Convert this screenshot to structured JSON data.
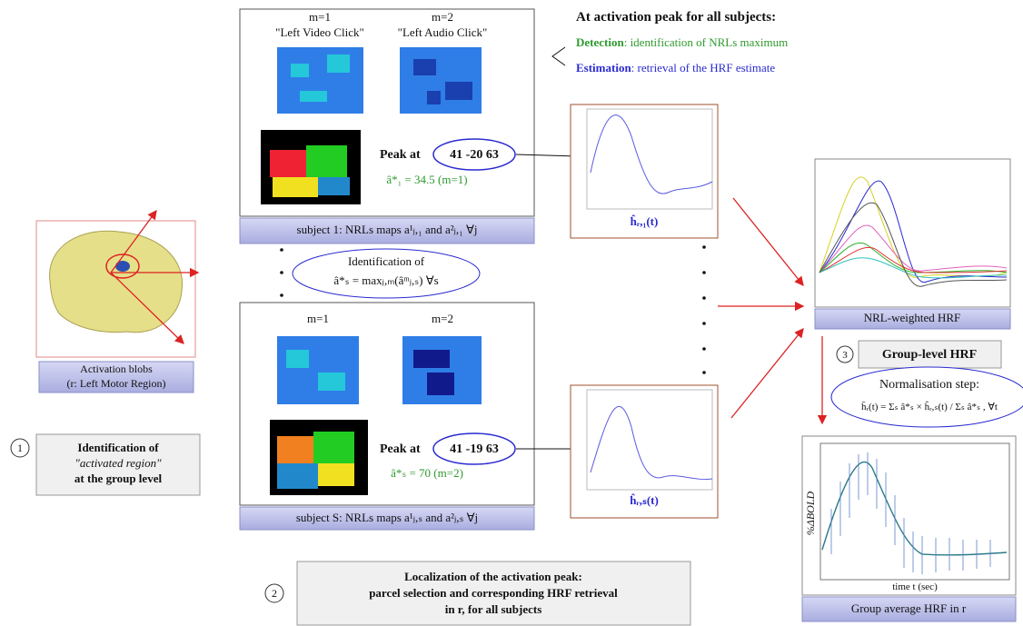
{
  "top": {
    "title": "At activation peak for all subjects:",
    "detection_term": "Detection",
    "detection_text": ": identification of NRLs maximum",
    "estimation_term": "Estimation",
    "estimation_text": ": retrieval of the HRF estimate"
  },
  "brain_caption": [
    "Activation blobs",
    "(r: Left Motor Region)"
  ],
  "step1": {
    "number": "1",
    "lines": [
      "Identification of",
      "\"activated region\"",
      "at the group level"
    ]
  },
  "subject1": {
    "m_labels": [
      "m=1",
      "m=2"
    ],
    "conditions": [
      "\"Left Video Click\"",
      "\"Left Audio Click\""
    ],
    "peak_label": "Peak at",
    "peak_coords": "41 -20 63",
    "amplitude": "â*₁ = 34.5 (m=1)",
    "caption": "subject 1: NRLs maps a¹ⱼ,₁ and a²ⱼ,₁ ∀j"
  },
  "identification": [
    "Identification of",
    "â*ₛ = maxⱼ,ₘ(âᵐⱼ,ₛ) ∀s"
  ],
  "subjectS": {
    "m_labels": [
      "m=1",
      "m=2"
    ],
    "peak_label": "Peak at",
    "peak_coords": "41 -19 63",
    "amplitude": "â*ₛ = 70 (m=2)",
    "caption": "subject S: NRLs maps a¹ⱼ,ₛ and a²ⱼ,ₛ ∀j"
  },
  "hrf_labels": [
    "ĥᵣ,₁(t)",
    "ĥᵣ,ₛ(t)"
  ],
  "group": {
    "nrl_caption": "NRL-weighted HRF",
    "step3_number": "3",
    "step3_label": "Group-level HRF",
    "normalisation": [
      "Normalisation step:",
      "h̄ᵣ(t) = Σₛ â*ₛ × ĥᵣ,ₛ(t) / Σₛ â*ₛ , ∀t"
    ],
    "ylabel": "%ΔBOLD",
    "xlabel": "time t (sec)",
    "caption": "Group average HRF in r"
  },
  "step2": {
    "number": "2",
    "lines": [
      "Localization of the activation peak:",
      "parcel selection and corresponding HRF retrieval",
      "in r, for all subjects"
    ]
  }
}
